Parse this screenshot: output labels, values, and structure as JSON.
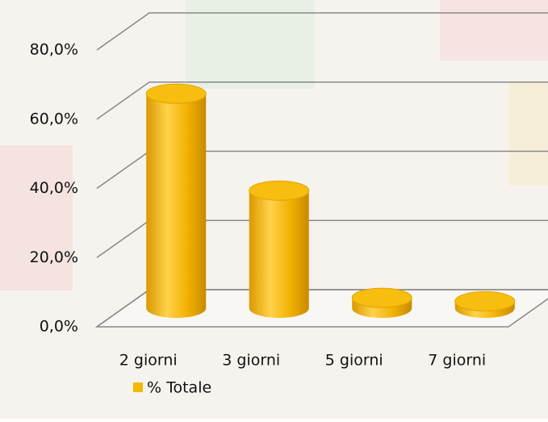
{
  "chart_data": {
    "type": "bar3d",
    "categories": [
      "2 giorni",
      "3 giorni",
      "5 giorni",
      "7 giorni"
    ],
    "series": [
      {
        "name": "% Totale",
        "color": "#f5b800",
        "values": [
          62,
          34,
          3,
          2
        ]
      }
    ],
    "ylim": [
      0,
      80
    ],
    "yticks": [
      {
        "value": 0,
        "label": "0,0%"
      },
      {
        "value": 20,
        "label": "20,0%"
      },
      {
        "value": 40,
        "label": "40,0%"
      },
      {
        "value": 60,
        "label": "60,0%"
      },
      {
        "value": 80,
        "label": "80,0%"
      }
    ],
    "grid": true
  }
}
